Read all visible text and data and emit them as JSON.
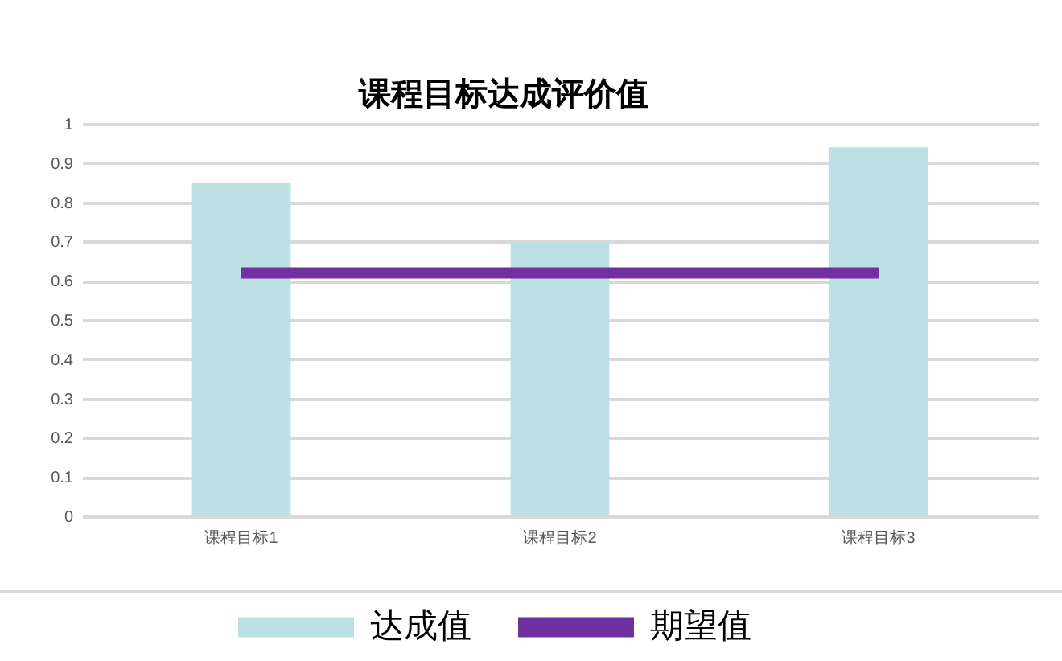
{
  "chart_data": {
    "type": "bar",
    "title": "课程目标达成评价值",
    "categories": [
      "课程目标1",
      "课程目标2",
      "课程目标3"
    ],
    "series": [
      {
        "name": "达成值",
        "type": "bar",
        "color": "#bce0e3",
        "values": [
          0.85,
          0.7,
          0.94
        ]
      },
      {
        "name": "期望值",
        "type": "line",
        "color": "#7030a0",
        "values": [
          0.62,
          0.62,
          0.62
        ]
      }
    ],
    "ylim": [
      0,
      1
    ],
    "yticks": [
      0,
      0.1,
      0.2,
      0.3,
      0.4,
      0.5,
      0.6,
      0.7,
      0.8,
      0.9,
      1
    ],
    "grid": "y",
    "legend": "bottom"
  }
}
